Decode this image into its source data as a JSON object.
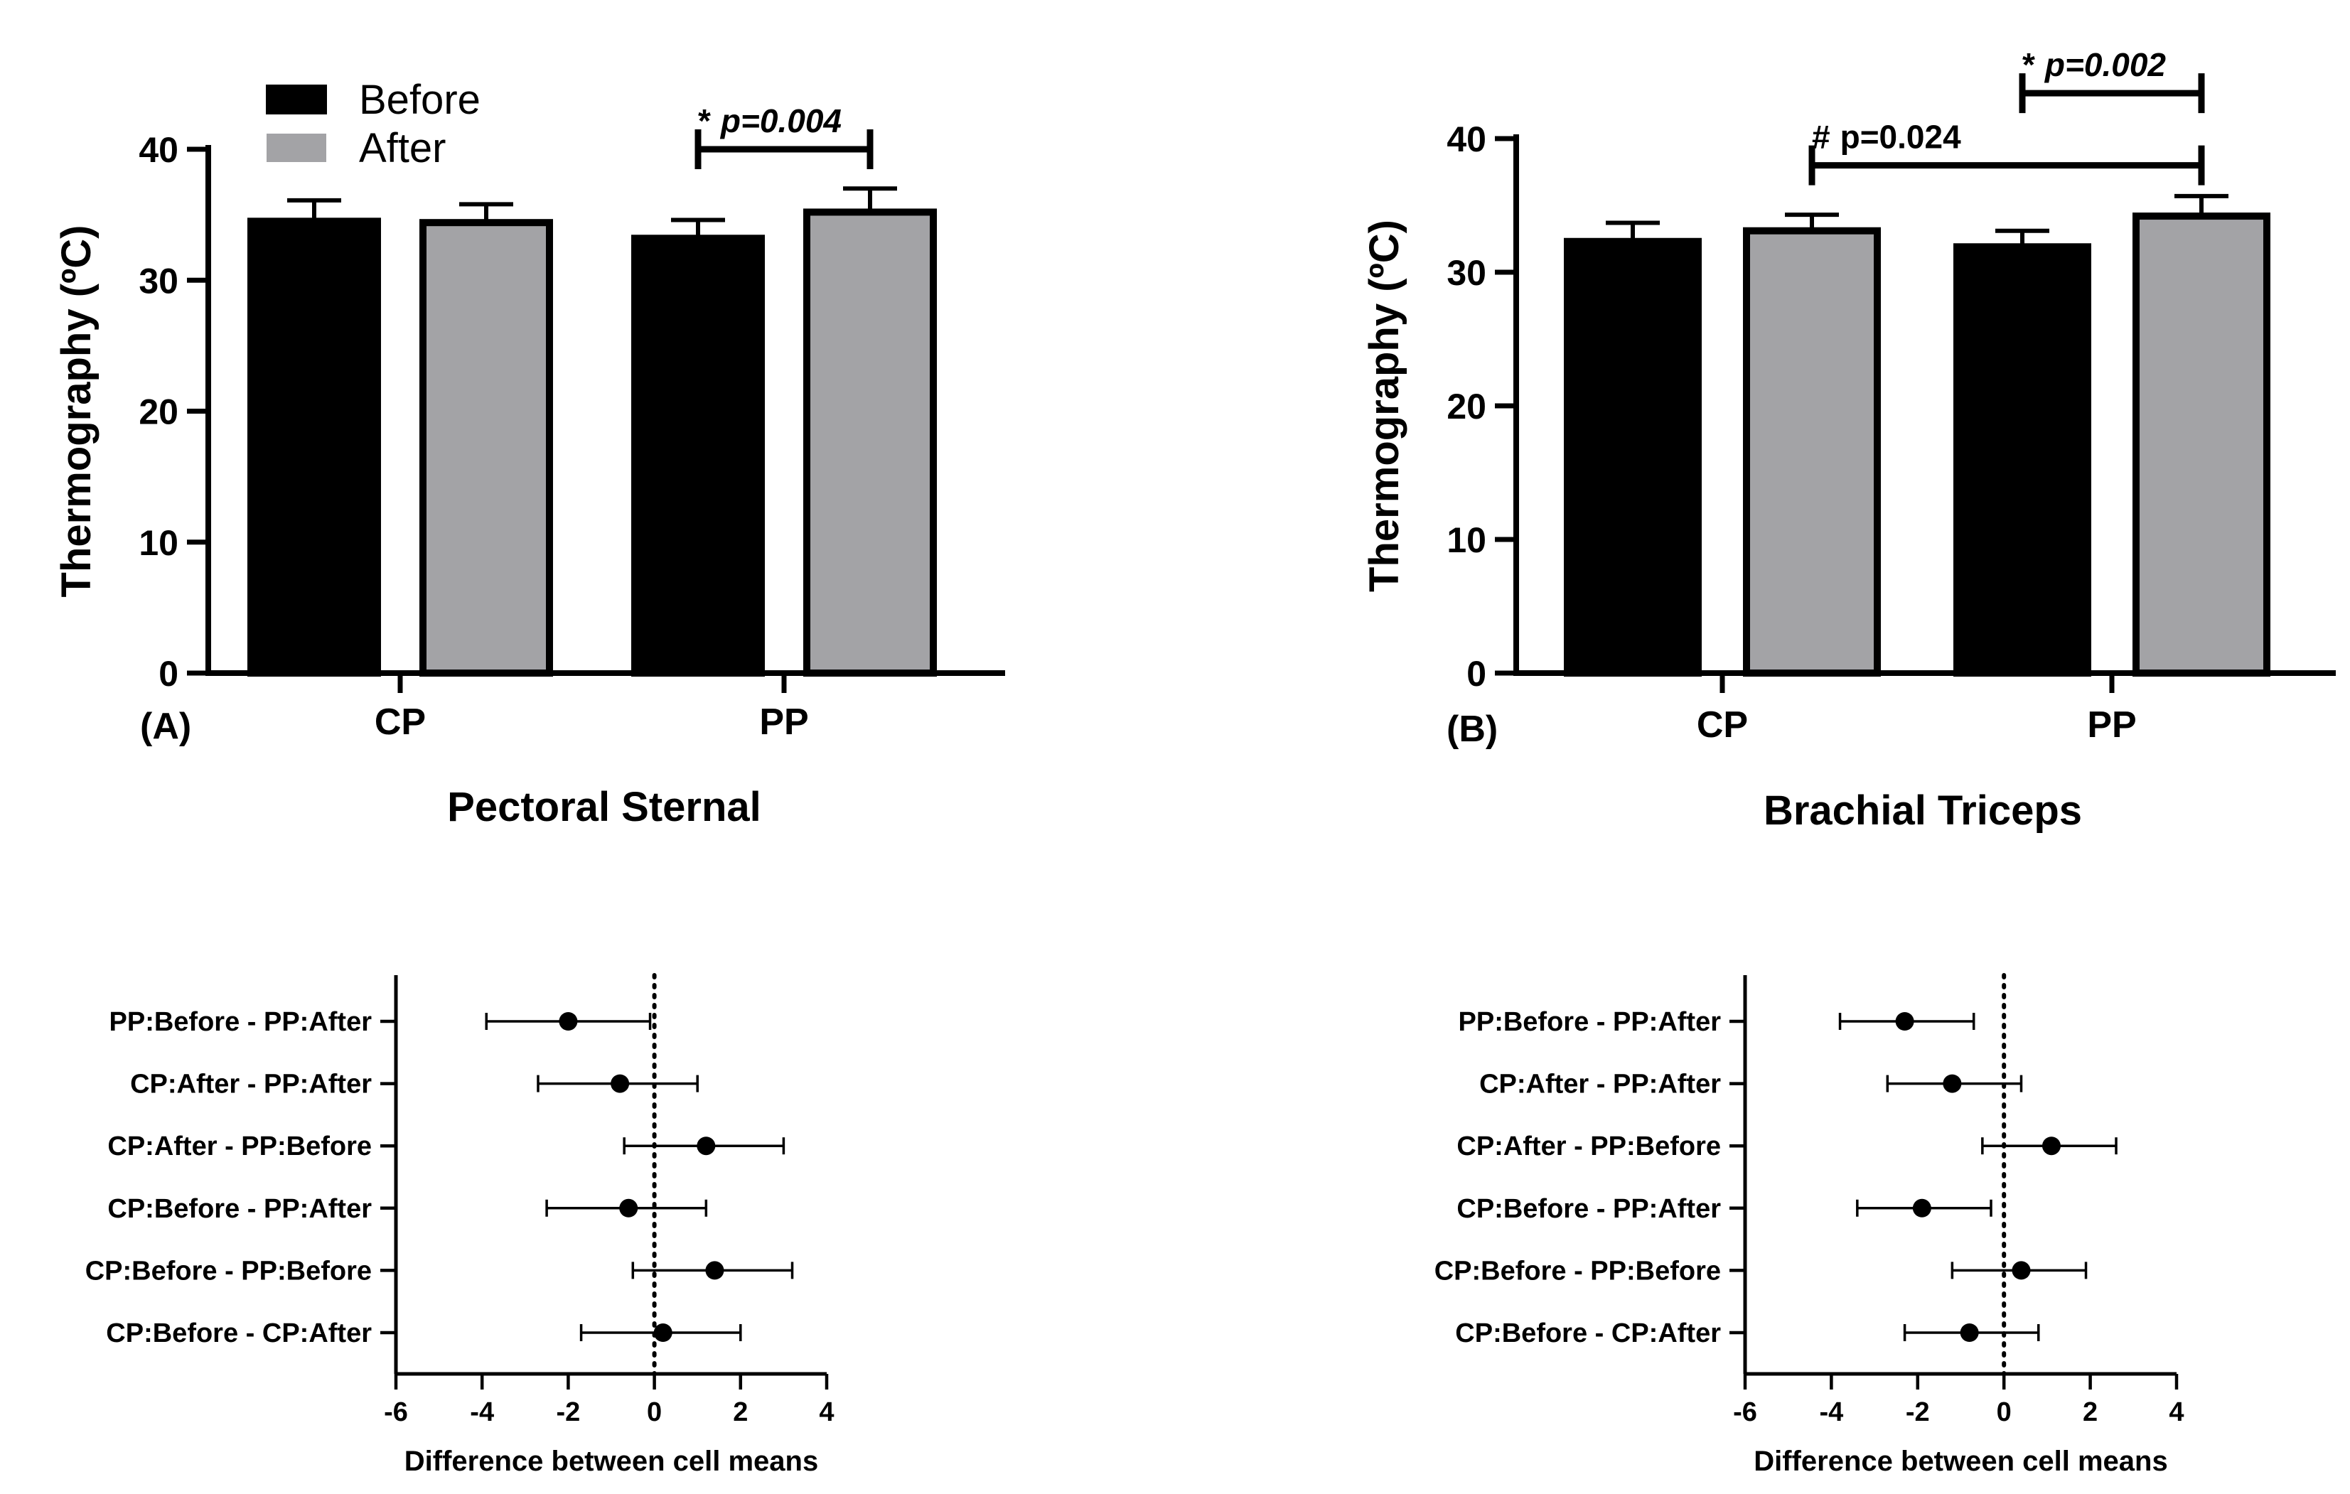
{
  "chart_data": [
    {
      "panel": "(A)",
      "type": "bar",
      "title": "Pectoral Sternal",
      "ylabel": "Thermography (ºC)",
      "ylim": [
        0,
        40
      ],
      "yticks": [
        0,
        10,
        20,
        30,
        40
      ],
      "categories": [
        "CP",
        "PP"
      ],
      "series": [
        {
          "name": "Before",
          "color": "#000000",
          "values": [
            34.5,
            33.2
          ],
          "errors": [
            1.6,
            1.4
          ]
        },
        {
          "name": "After",
          "color": "#a3a3a6",
          "values": [
            34.4,
            35.2
          ],
          "errors": [
            1.4,
            1.8
          ]
        }
      ],
      "legend": "top-left",
      "annotations": [
        {
          "prefix": "*",
          "text": "p=0.004",
          "italic": true,
          "category_from": "PP",
          "series_from": "Before",
          "category_to": "PP",
          "series_to": "After",
          "level": 40.0
        }
      ]
    },
    {
      "panel": "(B)",
      "type": "bar",
      "title": "Brachial Triceps",
      "ylabel": "Thermography (ºC)",
      "ylim": [
        0,
        40
      ],
      "yticks": [
        0,
        10,
        20,
        30,
        40
      ],
      "categories": [
        "CP",
        "PP"
      ],
      "series": [
        {
          "name": "Before",
          "color": "#000000",
          "values": [
            32.3,
            31.9
          ],
          "errors": [
            1.4,
            1.2
          ]
        },
        {
          "name": "After",
          "color": "#a3a3a6",
          "values": [
            33.1,
            34.2
          ],
          "errors": [
            1.2,
            1.5
          ]
        }
      ],
      "annotations": [
        {
          "prefix": "*",
          "text": "p=0.002",
          "italic": true,
          "category_from": "PP",
          "series_from": "Before",
          "category_to": "PP",
          "series_to": "After",
          "level": 43.4
        },
        {
          "prefix": "#",
          "text": "p=0.024",
          "italic": false,
          "category_from": "CP",
          "series_from": "After",
          "category_to": "PP",
          "series_to": "After",
          "level": 38.0
        }
      ]
    },
    {
      "type": "scatter",
      "subtype": "forest",
      "xlabel": "Difference between cell means",
      "xlim": [
        -6,
        4
      ],
      "xticks": [
        -6,
        -4,
        -2,
        0,
        2,
        4
      ],
      "reference_line": 0,
      "rows": [
        {
          "label": "PP:Before - PP:After",
          "mean": -2.0,
          "low": -3.9,
          "high": -0.1
        },
        {
          "label": "CP:After - PP:After",
          "mean": -0.8,
          "low": -2.7,
          "high": 1.0
        },
        {
          "label": "CP:After - PP:Before",
          "mean": 1.2,
          "low": -0.7,
          "high": 3.0
        },
        {
          "label": "CP:Before - PP:After",
          "mean": -0.6,
          "low": -2.5,
          "high": 1.2
        },
        {
          "label": "CP:Before - PP:Before",
          "mean": 1.4,
          "low": -0.5,
          "high": 3.2
        },
        {
          "label": "CP:Before - CP:After",
          "mean": 0.2,
          "low": -1.7,
          "high": 2.0
        }
      ]
    },
    {
      "type": "scatter",
      "subtype": "forest",
      "xlabel": "Difference between cell means",
      "xlim": [
        -6,
        4
      ],
      "xticks": [
        -6,
        -4,
        -2,
        0,
        2,
        4
      ],
      "reference_line": 0,
      "rows": [
        {
          "label": "PP:Before - PP:After",
          "mean": -2.3,
          "low": -3.8,
          "high": -0.7
        },
        {
          "label": "CP:After - PP:After",
          "mean": -1.2,
          "low": -2.7,
          "high": 0.4
        },
        {
          "label": "CP:After - PP:Before",
          "mean": 1.1,
          "low": -0.5,
          "high": 2.6
        },
        {
          "label": "CP:Before - PP:After",
          "mean": -1.9,
          "low": -3.4,
          "high": -0.3
        },
        {
          "label": "CP:Before - PP:Before",
          "mean": 0.4,
          "low": -1.2,
          "high": 1.9
        },
        {
          "label": "CP:Before - CP:After",
          "mean": -0.8,
          "low": -2.3,
          "high": 0.8
        }
      ]
    }
  ]
}
